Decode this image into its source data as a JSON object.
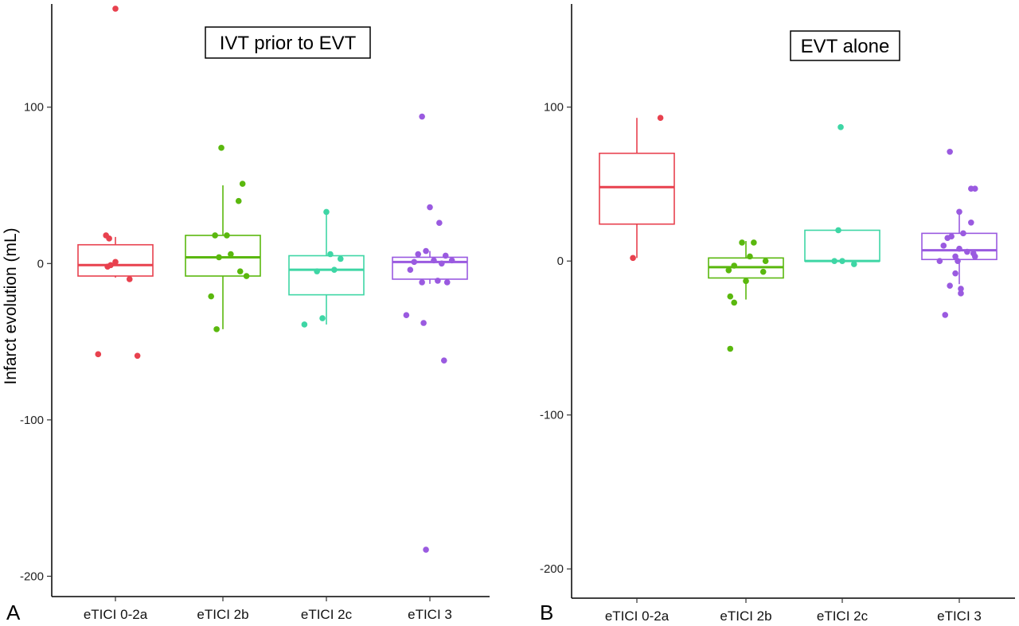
{
  "ylabel": "Infarct evolution (mL)",
  "yticks": [
    100,
    0,
    -100,
    -200
  ],
  "colors": {
    "eTICI 0-2a": "#e8414e",
    "eTICI 2b": "#5ab80e",
    "eTICI 2c": "#3ed6a5",
    "eTICI 3": "#9a5ae0"
  },
  "chart_data": [
    {
      "type": "box",
      "panel_letter": "A",
      "title": "IVT prior to EVT",
      "ylabel": "Infarct evolution (mL)",
      "ylim": [
        -213,
        166
      ],
      "categories": [
        "eTICI 0-2a",
        "eTICI 2b",
        "eTICI 2c",
        "eTICI 3"
      ],
      "boxes": [
        {
          "category": "eTICI 0-2a",
          "whisker_low": -9,
          "q1": -8,
          "median": -1,
          "q3": 12,
          "whisker_high": 17,
          "points": [
            [
              0.0,
              163
            ],
            [
              -0.12,
              18
            ],
            [
              -0.08,
              16
            ],
            [
              0.0,
              1
            ],
            [
              -0.1,
              -2
            ],
            [
              -0.06,
              -1
            ],
            [
              0.18,
              -10
            ],
            [
              -0.22,
              -58
            ],
            [
              0.28,
              -59
            ]
          ]
        },
        {
          "category": "eTICI 2b",
          "whisker_low": -42,
          "q1": -8,
          "median": 4,
          "q3": 18,
          "whisker_high": 50,
          "points": [
            [
              -0.02,
              74
            ],
            [
              0.25,
              51
            ],
            [
              0.2,
              40
            ],
            [
              -0.1,
              18
            ],
            [
              0.05,
              18
            ],
            [
              -0.05,
              4
            ],
            [
              0.3,
              -8
            ],
            [
              0.22,
              -5
            ],
            [
              0.1,
              6
            ],
            [
              -0.15,
              -21
            ],
            [
              -0.08,
              -42
            ]
          ]
        },
        {
          "category": "eTICI 2c",
          "whisker_low": -39,
          "q1": -20,
          "median": -4,
          "q3": 5,
          "whisker_high": 33,
          "points": [
            [
              0.0,
              33
            ],
            [
              0.05,
              6
            ],
            [
              0.18,
              3
            ],
            [
              -0.12,
              -5
            ],
            [
              0.1,
              -4
            ],
            [
              -0.28,
              -39
            ],
            [
              -0.05,
              -35
            ]
          ]
        },
        {
          "category": "eTICI 3",
          "whisker_low": -13,
          "q1": -10,
          "median": 1,
          "q3": 4,
          "whisker_high": 8,
          "points": [
            [
              -0.1,
              94
            ],
            [
              0.0,
              36
            ],
            [
              0.12,
              26
            ],
            [
              -0.05,
              8
            ],
            [
              -0.15,
              6
            ],
            [
              0.2,
              5
            ],
            [
              0.05,
              2
            ],
            [
              -0.2,
              1
            ],
            [
              0.15,
              0
            ],
            [
              0.28,
              2
            ],
            [
              -0.25,
              -4
            ],
            [
              -0.1,
              -12
            ],
            [
              0.1,
              -11
            ],
            [
              0.22,
              -12
            ],
            [
              -0.3,
              -33
            ],
            [
              -0.08,
              -38
            ],
            [
              0.18,
              -62
            ],
            [
              -0.05,
              -183
            ]
          ]
        }
      ]
    },
    {
      "type": "box",
      "panel_letter": "B",
      "title": "EVT alone",
      "ylim": [
        -219,
        167
      ],
      "categories": [
        "eTICI 0-2a",
        "eTICI 2b",
        "eTICI 2c",
        "eTICI 3"
      ],
      "boxes": [
        {
          "category": "eTICI 0-2a",
          "whisker_low": 2,
          "q1": 24,
          "median": 48,
          "q3": 70,
          "whisker_high": 93,
          "points": [
            [
              0.3,
              93
            ],
            [
              -0.05,
              2
            ]
          ]
        },
        {
          "category": "eTICI 2b",
          "whisker_low": -25,
          "q1": -11,
          "median": -4,
          "q3": 2,
          "whisker_high": 13,
          "points": [
            [
              -0.05,
              12
            ],
            [
              0.1,
              12
            ],
            [
              -0.22,
              -6
            ],
            [
              -0.15,
              -3
            ],
            [
              0.05,
              3
            ],
            [
              0.25,
              0
            ],
            [
              0.22,
              -7
            ],
            [
              0.0,
              -13
            ],
            [
              -0.2,
              -23
            ],
            [
              -0.15,
              -27
            ],
            [
              -0.2,
              -57
            ]
          ]
        },
        {
          "category": "eTICI 2c",
          "whisker_low": 0,
          "q1": 0,
          "median": 0,
          "q3": 20,
          "whisker_high": 20,
          "points": [
            [
              -0.02,
              87
            ],
            [
              -0.05,
              20
            ],
            [
              -0.1,
              0
            ],
            [
              0.0,
              0
            ],
            [
              0.15,
              -2
            ]
          ]
        },
        {
          "category": "eTICI 3",
          "whisker_low": -15,
          "q1": 1,
          "median": 7,
          "q3": 18,
          "whisker_high": 32,
          "points": [
            [
              -0.12,
              71
            ],
            [
              0.15,
              47
            ],
            [
              0.2,
              47
            ],
            [
              0.0,
              32
            ],
            [
              0.15,
              25
            ],
            [
              0.05,
              18
            ],
            [
              -0.15,
              15
            ],
            [
              -0.1,
              16
            ],
            [
              0.0,
              8
            ],
            [
              -0.2,
              10
            ],
            [
              0.1,
              6
            ],
            [
              0.2,
              3
            ],
            [
              -0.25,
              0
            ],
            [
              -0.05,
              3
            ],
            [
              -0.02,
              0
            ],
            [
              0.18,
              5
            ],
            [
              -0.05,
              -8
            ],
            [
              -0.12,
              -16
            ],
            [
              0.02,
              -18
            ],
            [
              0.02,
              -21
            ],
            [
              -0.18,
              -35
            ]
          ]
        }
      ]
    }
  ]
}
